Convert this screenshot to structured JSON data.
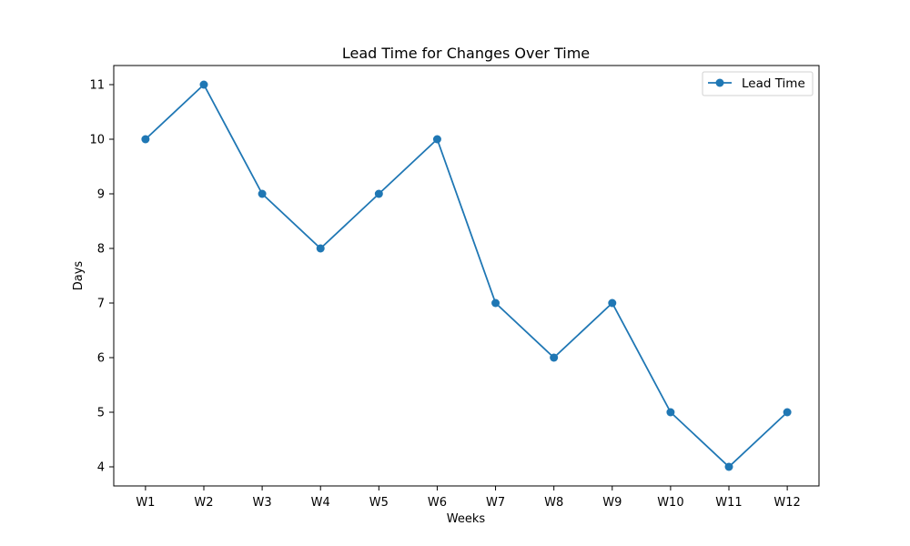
{
  "chart_data": {
    "type": "line",
    "title": "Lead Time for Changes Over Time",
    "xlabel": "Weeks",
    "ylabel": "Days",
    "categories": [
      "W1",
      "W2",
      "W3",
      "W4",
      "W5",
      "W6",
      "W7",
      "W8",
      "W9",
      "W10",
      "W11",
      "W12"
    ],
    "series": [
      {
        "name": "Lead Time",
        "values": [
          10,
          11,
          9,
          8,
          9,
          10,
          7,
          6,
          7,
          5,
          4,
          5
        ],
        "color": "#1f77b4",
        "marker": "circle"
      }
    ],
    "ylim": [
      3.65,
      11.35
    ],
    "yticks": [
      4,
      5,
      6,
      7,
      8,
      9,
      10,
      11
    ],
    "grid": false,
    "legend": "top-right"
  }
}
